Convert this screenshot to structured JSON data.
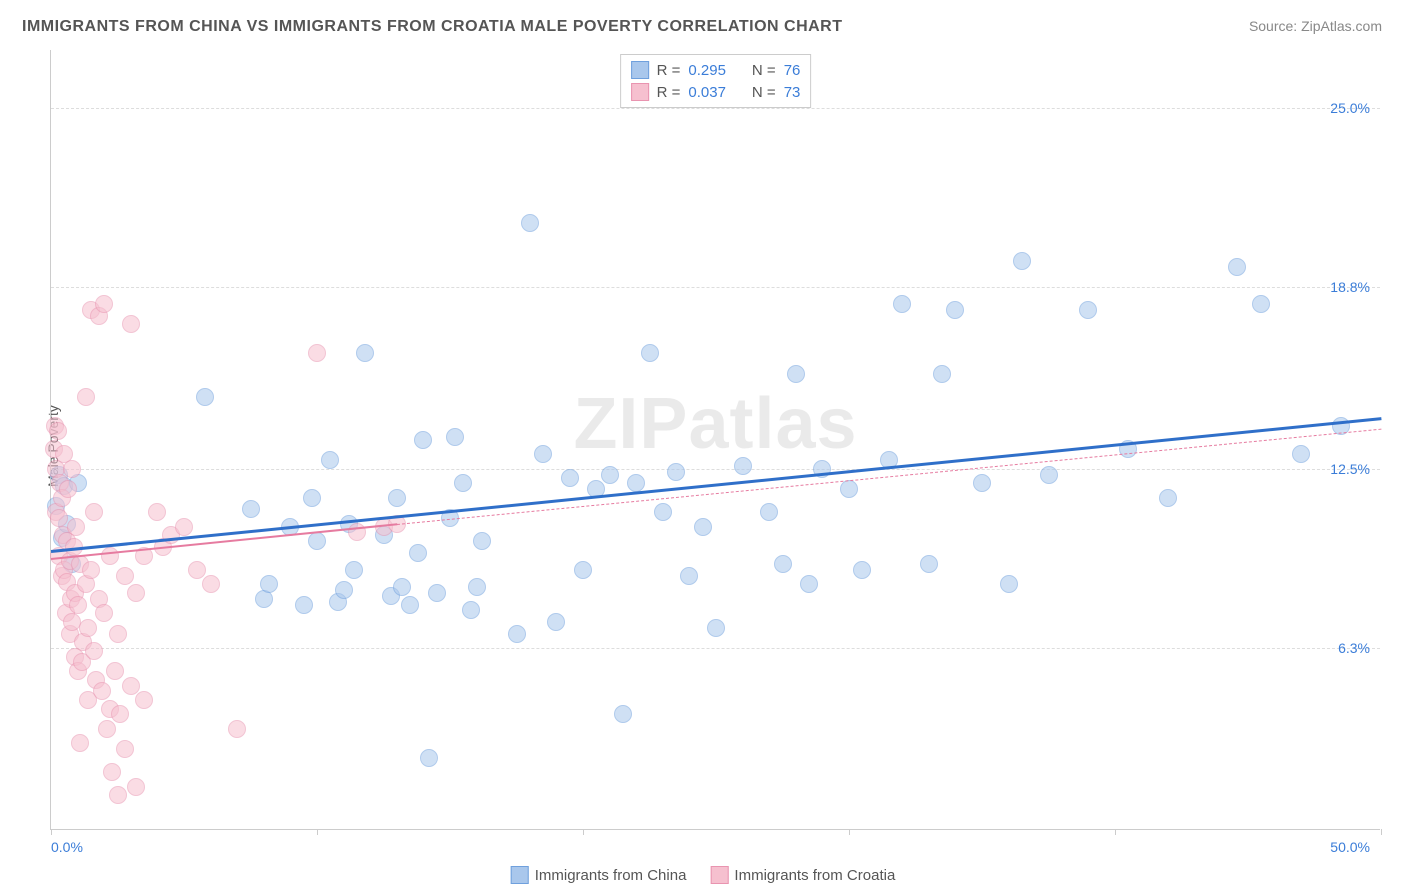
{
  "title": "IMMIGRANTS FROM CHINA VS IMMIGRANTS FROM CROATIA MALE POVERTY CORRELATION CHART",
  "source_label": "Source: ZipAtlas.com",
  "y_axis_label": "Male Poverty",
  "watermark": "ZIPatlas",
  "chart": {
    "type": "scatter",
    "xlim": [
      0,
      50
    ],
    "ylim": [
      0,
      27
    ],
    "x_tick_positions": [
      0,
      25,
      50
    ],
    "x_tick_labels": {
      "left": "0.0%",
      "right": "50.0%"
    },
    "y_gridlines": [
      6.3,
      12.5,
      18.8,
      25.0
    ],
    "y_tick_labels": [
      "6.3%",
      "12.5%",
      "18.8%",
      "25.0%"
    ],
    "background_color": "#ffffff",
    "grid_color": "#dddddd",
    "axis_color": "#cccccc",
    "tick_label_color": "#3b7dd8",
    "marker_radius": 9,
    "marker_opacity": 0.55,
    "series": [
      {
        "name": "Immigrants from China",
        "legend_label": "Immigrants from China",
        "color_fill": "#a9c7ec",
        "color_stroke": "#6fa0dd",
        "R": "0.295",
        "N": "76",
        "trend": {
          "x0": 0,
          "y0": 9.7,
          "x1": 50,
          "y1": 14.3,
          "color": "#2f6fc9",
          "width": 2.5,
          "dashed": false
        },
        "points": [
          [
            0.2,
            11.2
          ],
          [
            0.3,
            12.3
          ],
          [
            0.4,
            10.1
          ],
          [
            0.5,
            11.9
          ],
          [
            0.6,
            10.6
          ],
          [
            0.8,
            9.2
          ],
          [
            1.0,
            12.0
          ],
          [
            5.8,
            15.0
          ],
          [
            7.5,
            11.1
          ],
          [
            8.0,
            8.0
          ],
          [
            8.2,
            8.5
          ],
          [
            9.0,
            10.5
          ],
          [
            9.5,
            7.8
          ],
          [
            9.8,
            11.5
          ],
          [
            10.0,
            10.0
          ],
          [
            10.5,
            12.8
          ],
          [
            10.8,
            7.9
          ],
          [
            11.0,
            8.3
          ],
          [
            11.2,
            10.6
          ],
          [
            11.4,
            9.0
          ],
          [
            11.8,
            16.5
          ],
          [
            12.5,
            10.2
          ],
          [
            12.8,
            8.1
          ],
          [
            13.0,
            11.5
          ],
          [
            13.2,
            8.4
          ],
          [
            13.5,
            7.8
          ],
          [
            13.8,
            9.6
          ],
          [
            14.0,
            13.5
          ],
          [
            14.2,
            2.5
          ],
          [
            14.5,
            8.2
          ],
          [
            15.0,
            10.8
          ],
          [
            15.2,
            13.6
          ],
          [
            15.5,
            12.0
          ],
          [
            15.8,
            7.6
          ],
          [
            16.0,
            8.4
          ],
          [
            16.2,
            10.0
          ],
          [
            17.5,
            6.8
          ],
          [
            18.0,
            21.0
          ],
          [
            18.5,
            13.0
          ],
          [
            19.0,
            7.2
          ],
          [
            19.5,
            12.2
          ],
          [
            20.0,
            9.0
          ],
          [
            20.5,
            11.8
          ],
          [
            21.0,
            12.3
          ],
          [
            21.5,
            4.0
          ],
          [
            22.0,
            12.0
          ],
          [
            22.5,
            16.5
          ],
          [
            23.0,
            11.0
          ],
          [
            23.5,
            12.4
          ],
          [
            24.0,
            8.8
          ],
          [
            24.5,
            10.5
          ],
          [
            25.0,
            7.0
          ],
          [
            26.0,
            12.6
          ],
          [
            27.0,
            11.0
          ],
          [
            27.5,
            9.2
          ],
          [
            28.0,
            15.8
          ],
          [
            28.5,
            8.5
          ],
          [
            29.0,
            12.5
          ],
          [
            30.0,
            11.8
          ],
          [
            30.5,
            9.0
          ],
          [
            31.5,
            12.8
          ],
          [
            32.0,
            18.2
          ],
          [
            33.0,
            9.2
          ],
          [
            33.5,
            15.8
          ],
          [
            34.0,
            18.0
          ],
          [
            35.0,
            12.0
          ],
          [
            36.0,
            8.5
          ],
          [
            36.5,
            19.7
          ],
          [
            37.5,
            12.3
          ],
          [
            39.0,
            18.0
          ],
          [
            40.5,
            13.2
          ],
          [
            42.0,
            11.5
          ],
          [
            44.6,
            19.5
          ],
          [
            45.5,
            18.2
          ],
          [
            47.0,
            13.0
          ],
          [
            48.5,
            14.0
          ]
        ]
      },
      {
        "name": "Immigrants from Croatia",
        "legend_label": "Immigrants from Croatia",
        "color_fill": "#f6c0cf",
        "color_stroke": "#e994b0",
        "R": "0.037",
        "N": "73",
        "trend_solid": {
          "x0": 0,
          "y0": 9.4,
          "x1": 13,
          "y1": 10.6,
          "color": "#e67ba0",
          "width": 2,
          "dashed": false
        },
        "trend_dashed": {
          "x0": 13,
          "y0": 10.6,
          "x1": 50,
          "y1": 13.9,
          "color": "#e67ba0",
          "width": 1,
          "dashed": true
        },
        "points": [
          [
            0.1,
            13.2
          ],
          [
            0.15,
            14.0
          ],
          [
            0.2,
            11.0
          ],
          [
            0.2,
            12.5
          ],
          [
            0.25,
            13.8
          ],
          [
            0.3,
            9.5
          ],
          [
            0.3,
            10.8
          ],
          [
            0.35,
            12.0
          ],
          [
            0.4,
            8.8
          ],
          [
            0.4,
            11.5
          ],
          [
            0.45,
            10.2
          ],
          [
            0.5,
            9.0
          ],
          [
            0.5,
            13.0
          ],
          [
            0.55,
            7.5
          ],
          [
            0.6,
            8.6
          ],
          [
            0.6,
            10.0
          ],
          [
            0.65,
            11.8
          ],
          [
            0.7,
            6.8
          ],
          [
            0.7,
            9.3
          ],
          [
            0.75,
            8.0
          ],
          [
            0.8,
            12.5
          ],
          [
            0.8,
            7.2
          ],
          [
            0.85,
            9.8
          ],
          [
            0.9,
            6.0
          ],
          [
            0.9,
            8.2
          ],
          [
            0.95,
            10.5
          ],
          [
            1.0,
            5.5
          ],
          [
            1.0,
            7.8
          ],
          [
            1.1,
            3.0
          ],
          [
            1.1,
            9.2
          ],
          [
            1.15,
            5.8
          ],
          [
            1.2,
            6.5
          ],
          [
            1.3,
            15.0
          ],
          [
            1.3,
            8.5
          ],
          [
            1.4,
            4.5
          ],
          [
            1.4,
            7.0
          ],
          [
            1.5,
            18.0
          ],
          [
            1.5,
            9.0
          ],
          [
            1.6,
            6.2
          ],
          [
            1.6,
            11.0
          ],
          [
            1.7,
            5.2
          ],
          [
            1.8,
            17.8
          ],
          [
            1.8,
            8.0
          ],
          [
            1.9,
            4.8
          ],
          [
            2.0,
            18.2
          ],
          [
            2.0,
            7.5
          ],
          [
            2.1,
            3.5
          ],
          [
            2.2,
            4.2
          ],
          [
            2.2,
            9.5
          ],
          [
            2.3,
            2.0
          ],
          [
            2.4,
            5.5
          ],
          [
            2.5,
            1.2
          ],
          [
            2.5,
            6.8
          ],
          [
            2.6,
            4.0
          ],
          [
            2.8,
            8.8
          ],
          [
            2.8,
            2.8
          ],
          [
            3.0,
            17.5
          ],
          [
            3.0,
            5.0
          ],
          [
            3.2,
            1.5
          ],
          [
            3.2,
            8.2
          ],
          [
            3.5,
            9.5
          ],
          [
            3.5,
            4.5
          ],
          [
            4.0,
            11.0
          ],
          [
            4.2,
            9.8
          ],
          [
            4.5,
            10.2
          ],
          [
            5.0,
            10.5
          ],
          [
            5.5,
            9.0
          ],
          [
            6.0,
            8.5
          ],
          [
            7.0,
            3.5
          ],
          [
            10.0,
            16.5
          ],
          [
            11.5,
            10.3
          ],
          [
            12.5,
            10.5
          ],
          [
            13.0,
            10.6
          ]
        ]
      }
    ]
  },
  "legend_top": {
    "rows": [
      {
        "swatch_fill": "#a9c7ec",
        "swatch_stroke": "#6fa0dd",
        "r_label": "R =",
        "r_val": "0.295",
        "n_label": "N =",
        "n_val": "76"
      },
      {
        "swatch_fill": "#f6c0cf",
        "swatch_stroke": "#e994b0",
        "r_label": "R =",
        "r_val": "0.037",
        "n_label": "N =",
        "n_val": "73"
      }
    ]
  },
  "legend_bottom": {
    "items": [
      {
        "swatch_fill": "#a9c7ec",
        "swatch_stroke": "#6fa0dd",
        "label": "Immigrants from China"
      },
      {
        "swatch_fill": "#f6c0cf",
        "swatch_stroke": "#e994b0",
        "label": "Immigrants from Croatia"
      }
    ]
  }
}
